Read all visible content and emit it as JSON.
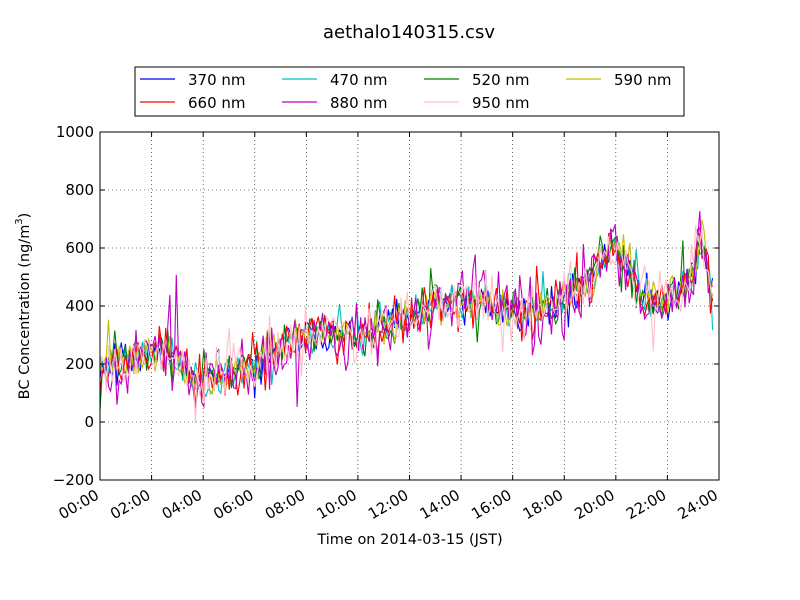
{
  "chart_data": {
    "type": "line",
    "title": "aethalo140315.csv",
    "xlabel": "Time on 2014-03-15 (JST)",
    "ylabel": "BC Concentration (ng/m³)",
    "ylabel_main": "BC Concentration (ng/m",
    "ylabel_sup": "3",
    "ylabel_close": ")",
    "xlim": [
      0,
      24
    ],
    "ylim": [
      -200,
      1000
    ],
    "x_unit": "hours",
    "x_ticks": [
      0,
      2,
      4,
      6,
      8,
      10,
      12,
      14,
      16,
      18,
      20,
      22,
      24
    ],
    "x_tick_labels": [
      "00:00",
      "02:00",
      "04:00",
      "06:00",
      "08:00",
      "10:00",
      "12:00",
      "14:00",
      "16:00",
      "18:00",
      "20:00",
      "22:00",
      "24:00"
    ],
    "y_ticks": [
      -200,
      0,
      200,
      400,
      600,
      800,
      1000
    ],
    "y_tick_labels": [
      "−200",
      "0",
      "200",
      "400",
      "600",
      "800",
      "1000"
    ],
    "grid": true,
    "legend_position": "top-center",
    "legend_columns": 4,
    "series": [
      {
        "name": "370 nm",
        "color": "#0000ff",
        "seed": 11,
        "amp": 0.9
      },
      {
        "name": "470 nm",
        "color": "#00bfbf",
        "seed": 23,
        "amp": 0.9
      },
      {
        "name": "520 nm",
        "color": "#008000",
        "seed": 37,
        "amp": 1.0
      },
      {
        "name": "590 nm",
        "color": "#bfbf00",
        "seed": 41,
        "amp": 0.9
      },
      {
        "name": "660 nm",
        "color": "#ff0000",
        "seed": 53,
        "amp": 1.15
      },
      {
        "name": "880 nm",
        "color": "#bf00bf",
        "seed": 67,
        "amp": 1.6
      },
      {
        "name": "950 nm",
        "color": "#ffc0cb",
        "seed": 79,
        "amp": 1.3
      }
    ],
    "profile": {
      "x": [
        0,
        0.5,
        1,
        1.5,
        2,
        2.5,
        3,
        3.5,
        4,
        4.5,
        5,
        5.5,
        6,
        6.5,
        7,
        7.5,
        8,
        8.5,
        9,
        9.5,
        10,
        10.5,
        11,
        11.5,
        12,
        12.5,
        13,
        13.5,
        14,
        14.5,
        15,
        15.5,
        16,
        16.5,
        17,
        17.5,
        18,
        18.5,
        19,
        19.5,
        20,
        20.5,
        21,
        21.5,
        22,
        22.5,
        23,
        23.3,
        23.6,
        23.75
      ],
      "y": [
        190,
        210,
        220,
        230,
        240,
        250,
        220,
        150,
        150,
        160,
        170,
        175,
        200,
        230,
        260,
        280,
        300,
        310,
        310,
        300,
        300,
        320,
        330,
        340,
        360,
        380,
        400,
        410,
        400,
        410,
        410,
        400,
        380,
        370,
        380,
        390,
        440,
        460,
        480,
        580,
        620,
        530,
        430,
        420,
        430,
        450,
        500,
        650,
        520,
        440
      ]
    }
  }
}
